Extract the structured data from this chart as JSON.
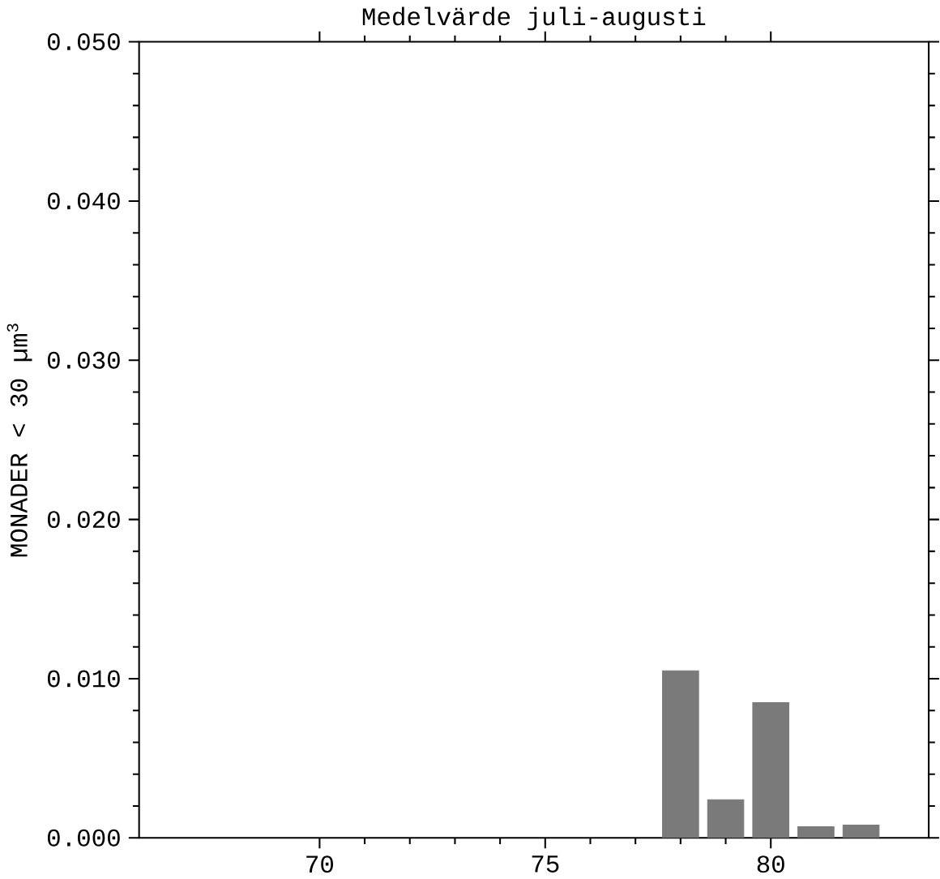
{
  "chart_data": {
    "type": "bar",
    "title": "Medelvärde juli-augusti",
    "ylabel": "MONADER < 30 µm$^{3}$",
    "x": [
      78,
      79,
      80,
      81,
      82
    ],
    "values": [
      0.0105,
      0.0024,
      0.0085,
      0.0007,
      0.0008
    ],
    "color": "#7a7a7a",
    "xlim": [
      66,
      83.5
    ],
    "xticks": [
      70,
      75,
      80
    ],
    "ylim": [
      0,
      0.05
    ],
    "yticks": [
      {
        "value": 0,
        "label": "0.000"
      },
      {
        "value": 0.01,
        "label": "0.010"
      },
      {
        "value": 0.02,
        "label": "0.020"
      },
      {
        "value": 0.03,
        "label": "0.030"
      },
      {
        "value": 0.04,
        "label": "0.040"
      },
      {
        "value": 0.05,
        "label": "0.050"
      }
    ]
  }
}
